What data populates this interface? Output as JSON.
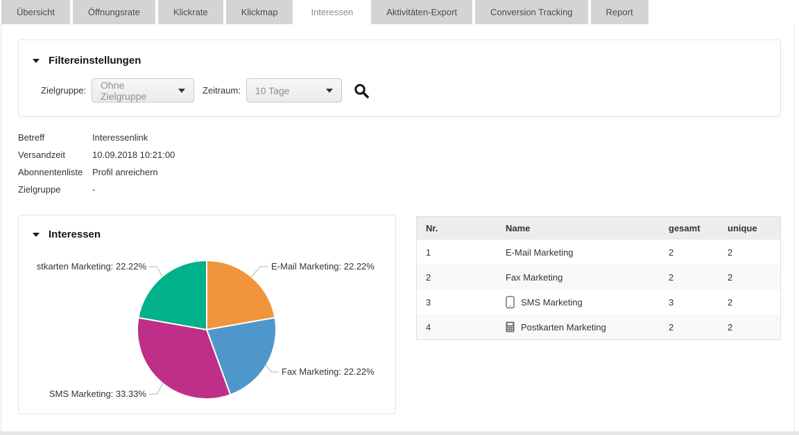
{
  "tabs": {
    "items": [
      {
        "label": "Übersicht",
        "active": false
      },
      {
        "label": "Öffnungsrate",
        "active": false
      },
      {
        "label": "Klickrate",
        "active": false
      },
      {
        "label": "Klickmap",
        "active": false
      },
      {
        "label": "Interessen",
        "active": true
      },
      {
        "label": "Aktivitäten-Export",
        "active": false
      },
      {
        "label": "Conversion Tracking",
        "active": false
      },
      {
        "label": "Report",
        "active": false
      }
    ]
  },
  "filter_panel": {
    "title": "Filtereinstellungen",
    "zielgruppe_label": "Zielgruppe:",
    "zielgruppe_value": "Ohne Zielgruppe",
    "zeitraum_label": "Zeitraum:",
    "zeitraum_value": "10 Tage",
    "search_icon": "magnifier-icon"
  },
  "message_info": {
    "rows": [
      {
        "label": "Betreff",
        "value": "Interessenlink"
      },
      {
        "label": "Versandzeit",
        "value": "10.09.2018 10:21:00"
      },
      {
        "label": "Abonnentenliste",
        "value": "Profil anreichern"
      },
      {
        "label": "Zielgruppe",
        "value": "-"
      }
    ]
  },
  "interests_panel": {
    "title": "Interessen"
  },
  "chart_data": {
    "type": "pie",
    "title": "Interessen",
    "categories": [
      "E-Mail Marketing",
      "Fax Marketing",
      "SMS Marketing",
      "Postkarten Marketing"
    ],
    "values": [
      22.22,
      22.22,
      33.33,
      22.22
    ],
    "unit": "%",
    "colors": [
      "#f0953c",
      "#4f97ca",
      "#bf2e87",
      "#00b189"
    ],
    "display_labels": [
      "E-Mail Marketing: 22.22%",
      "Fax Marketing: 22.22%",
      "SMS Marketing: 33.33%",
      "stkarten Marketing: 22.22%"
    ],
    "start_angle": "12-oclock",
    "direction": "clockwise",
    "legend": "none"
  },
  "table": {
    "columns": [
      "Nr.",
      "Name",
      "gesamt",
      "unique"
    ],
    "rows": [
      {
        "nr": "1",
        "name": "E-Mail Marketing",
        "icon": "",
        "gesamt": "2",
        "unique": "2"
      },
      {
        "nr": "2",
        "name": "Fax Marketing",
        "icon": "",
        "gesamt": "2",
        "unique": "2"
      },
      {
        "nr": "3",
        "name": "SMS Marketing",
        "icon": "smartphone-icon",
        "gesamt": "3",
        "unique": "2"
      },
      {
        "nr": "4",
        "name": "Postkarten Marketing",
        "icon": "calculator-icon",
        "gesamt": "2",
        "unique": "2"
      }
    ]
  },
  "colors": {
    "tab_bg": "#d4d4d4",
    "tab_text": "#4a4a4a",
    "active_tab_text": "#8c8c8c",
    "panel_border": "#e3e3e3",
    "table_header_bg": "#ededed",
    "alt_row_bg": "#f8f8f8",
    "pie_orange": "#f0953c",
    "pie_blue": "#4f97ca",
    "pie_magenta": "#bf2e87",
    "pie_green": "#00b189"
  }
}
